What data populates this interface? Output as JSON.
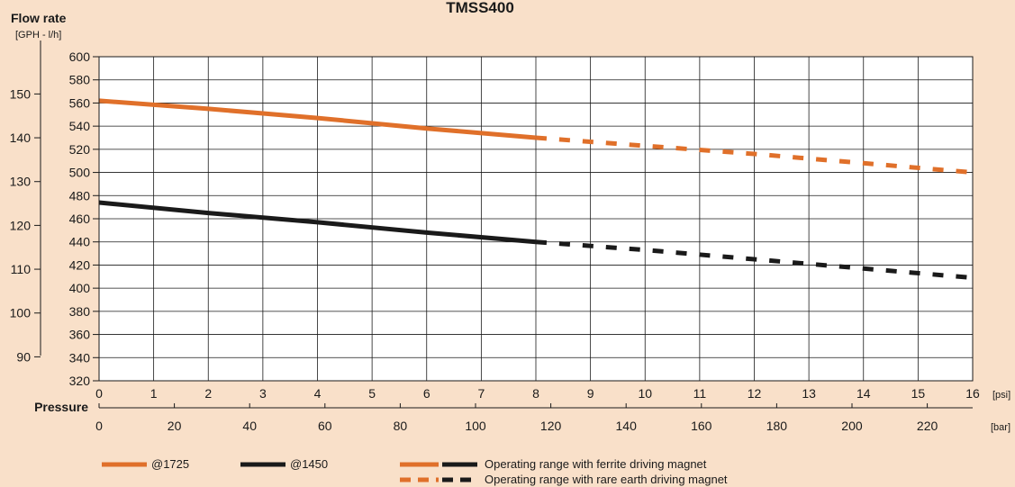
{
  "chart_data": {
    "type": "line",
    "title": "TMSS400",
    "y_title": "Flow rate",
    "y_units": "[GPH - l/h]",
    "x_title": "Pressure",
    "x_unit_psi": "[psi]",
    "x_unit_bar": "[bar]",
    "x_psi_ticks": [
      "0",
      "1",
      "2",
      "3",
      "4",
      "5",
      "6",
      "7",
      "8",
      "9",
      "10",
      "11",
      "12",
      "13",
      "14",
      "15",
      "16"
    ],
    "x_bar_ticks": [
      "0",
      "20",
      "40",
      "60",
      "80",
      "100",
      "120",
      "140",
      "160",
      "180",
      "200",
      "220"
    ],
    "y_lh_ticks": [
      "600",
      "580",
      "560",
      "540",
      "520",
      "500",
      "480",
      "460",
      "440",
      "420",
      "400",
      "380",
      "360",
      "340",
      "320"
    ],
    "y_gph_ticks": [
      "150",
      "140",
      "130",
      "120",
      "110",
      "100",
      "90"
    ],
    "xlim_psi": [
      0,
      16
    ],
    "ylim_lh": [
      320,
      600
    ],
    "grid": true,
    "colors": {
      "orange": "#e0702a",
      "black": "#1a1a1a"
    },
    "series": [
      {
        "name": "@1725",
        "color": "#e0702a",
        "solid_until_psi": 8,
        "x": [
          0,
          2,
          4,
          6,
          8,
          10,
          12,
          14,
          16
        ],
        "y": [
          562,
          555,
          547,
          538,
          530,
          523,
          516,
          508,
          500
        ]
      },
      {
        "name": "@1450",
        "color": "#1a1a1a",
        "solid_until_psi": 8,
        "x": [
          0,
          2,
          4,
          6,
          8,
          10,
          12,
          14,
          16
        ],
        "y": [
          474,
          465,
          457,
          448,
          440,
          433,
          425,
          417,
          409
        ]
      }
    ],
    "legend": {
      "series_labels": [
        "@1725",
        "@1450"
      ],
      "ferrite_label": "Operating range with ferrite driving magnet",
      "rare_earth_label": "Operating range with rare earth driving magnet"
    }
  }
}
